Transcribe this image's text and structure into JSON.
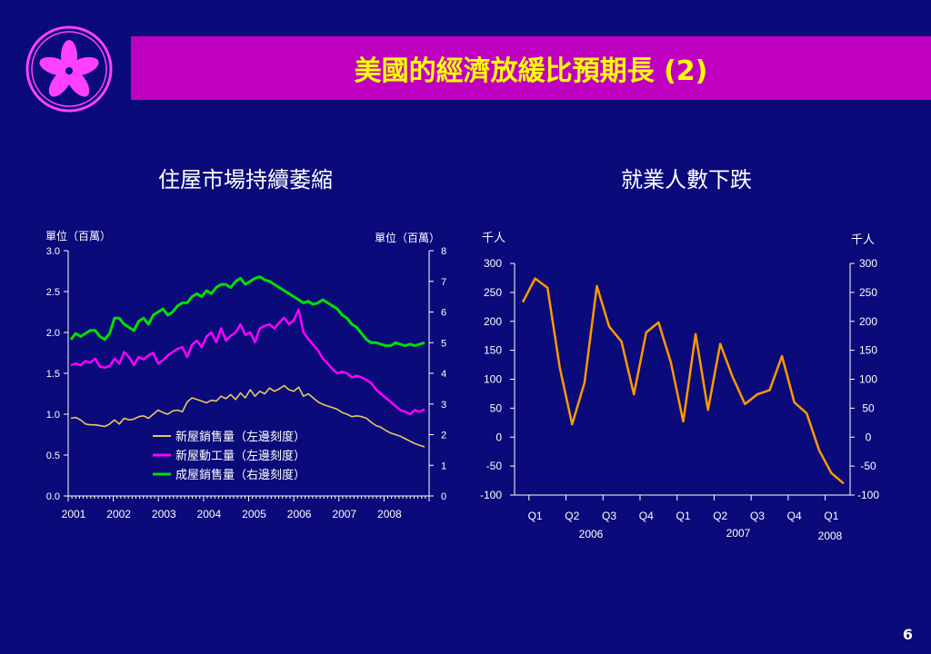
{
  "slide": {
    "title": "美國的經濟放緩比預期長 (2)",
    "page_number": "6"
  },
  "colors": {
    "background": "#0a0a7a",
    "title_bar": "#c000c0",
    "title_text": "#ffff00",
    "series_new_home_sales": "#e8c860",
    "series_housing_starts": "#ff00ff",
    "series_existing_sales": "#00e000",
    "employment_line": "#ff9900"
  },
  "chart_data": [
    {
      "type": "line",
      "title": "住屋市場持續萎縮",
      "ylabel_left": "單位（百萬）",
      "ylabel_right": "單位（百萬）",
      "ylim_left": [
        0,
        3
      ],
      "ylim_right": [
        0,
        8
      ],
      "yticks_left": [
        "0.0",
        "0.5",
        "1.0",
        "1.5",
        "2.0",
        "2.5",
        "3.0"
      ],
      "yticks_right": [
        "0",
        "1",
        "2",
        "3",
        "4",
        "5",
        "6",
        "7",
        "8"
      ],
      "x_labels": [
        "2001",
        "2002",
        "2003",
        "2004",
        "2005",
        "2006",
        "2007",
        "2008"
      ],
      "legend_position": "bottom-center",
      "series": [
        {
          "name": "新屋銷售量（左邊刻度）",
          "axis": "left",
          "values": [
            0.95,
            0.96,
            0.93,
            0.88,
            0.87,
            0.87,
            0.86,
            0.85,
            0.88,
            0.93,
            0.88,
            0.95,
            0.93,
            0.94,
            0.97,
            0.98,
            0.95,
            1.0,
            1.05,
            1.02,
            1.0,
            1.04,
            1.05,
            1.03,
            1.15,
            1.2,
            1.18,
            1.16,
            1.14,
            1.17,
            1.16,
            1.22,
            1.19,
            1.24,
            1.18,
            1.26,
            1.2,
            1.3,
            1.22,
            1.28,
            1.25,
            1.32,
            1.28,
            1.31,
            1.35,
            1.3,
            1.28,
            1.33,
            1.22,
            1.25,
            1.2,
            1.15,
            1.12,
            1.1,
            1.08,
            1.06,
            1.02,
            1.0,
            0.97,
            0.98,
            0.97,
            0.95,
            0.9,
            0.86,
            0.84,
            0.8,
            0.77,
            0.75,
            0.73,
            0.7,
            0.67,
            0.64,
            0.62,
            0.6
          ]
        },
        {
          "name": "新屋動工量（左邊刻度）",
          "axis": "left",
          "values": [
            1.6,
            1.62,
            1.6,
            1.65,
            1.63,
            1.68,
            1.58,
            1.57,
            1.59,
            1.68,
            1.62,
            1.76,
            1.7,
            1.6,
            1.7,
            1.67,
            1.72,
            1.75,
            1.62,
            1.66,
            1.72,
            1.76,
            1.8,
            1.82,
            1.7,
            1.85,
            1.9,
            1.82,
            1.95,
            2.0,
            1.88,
            2.05,
            1.9,
            1.96,
            2.0,
            2.1,
            1.97,
            2.0,
            1.88,
            2.05,
            2.08,
            2.1,
            2.05,
            2.12,
            2.18,
            2.1,
            2.15,
            2.28,
            2.0,
            1.92,
            1.85,
            1.78,
            1.68,
            1.62,
            1.55,
            1.5,
            1.52,
            1.5,
            1.45,
            1.47,
            1.45,
            1.42,
            1.38,
            1.3,
            1.25,
            1.2,
            1.15,
            1.1,
            1.05,
            1.03,
            1.0,
            1.05,
            1.03,
            1.06
          ]
        },
        {
          "name": "成屋銷售量（右邊刻度）",
          "axis": "right",
          "values": [
            5.1,
            5.3,
            5.2,
            5.3,
            5.4,
            5.4,
            5.2,
            5.1,
            5.3,
            5.8,
            5.8,
            5.6,
            5.5,
            5.4,
            5.7,
            5.8,
            5.6,
            5.9,
            6.0,
            6.1,
            5.9,
            6.0,
            6.2,
            6.3,
            6.3,
            6.5,
            6.6,
            6.5,
            6.7,
            6.6,
            6.8,
            6.9,
            6.9,
            6.8,
            7.0,
            7.1,
            6.9,
            7.0,
            7.1,
            7.15,
            7.05,
            7.0,
            6.9,
            6.8,
            6.7,
            6.6,
            6.5,
            6.4,
            6.3,
            6.35,
            6.25,
            6.3,
            6.4,
            6.3,
            6.2,
            6.1,
            5.9,
            5.8,
            5.6,
            5.5,
            5.3,
            5.1,
            5.0,
            5.0,
            4.95,
            4.9,
            4.9,
            5.0,
            4.95,
            4.9,
            4.95,
            4.9,
            4.95,
            5.0
          ]
        }
      ]
    },
    {
      "type": "line",
      "title": "就業人數下跌",
      "ylabel_left": "千人",
      "ylabel_right": "千人",
      "ylim": [
        -100,
        300
      ],
      "yticks": [
        "300",
        "250",
        "200",
        "150",
        "100",
        "50",
        "0",
        "-50",
        "-100"
      ],
      "quarter_labels": [
        "Q1",
        "Q2",
        "Q3",
        "Q4",
        "Q1",
        "Q2",
        "Q3",
        "Q4",
        "Q1"
      ],
      "year_labels": [
        "2006",
        "2007",
        "2008"
      ],
      "series": [
        {
          "name": "",
          "values": [
            233,
            274,
            258,
            120,
            22,
            94,
            261,
            191,
            165,
            74,
            181,
            198,
            129,
            27,
            178,
            47,
            161,
            104,
            57,
            74,
            81,
            140,
            60,
            41,
            -22,
            -62,
            -80
          ]
        }
      ]
    }
  ]
}
